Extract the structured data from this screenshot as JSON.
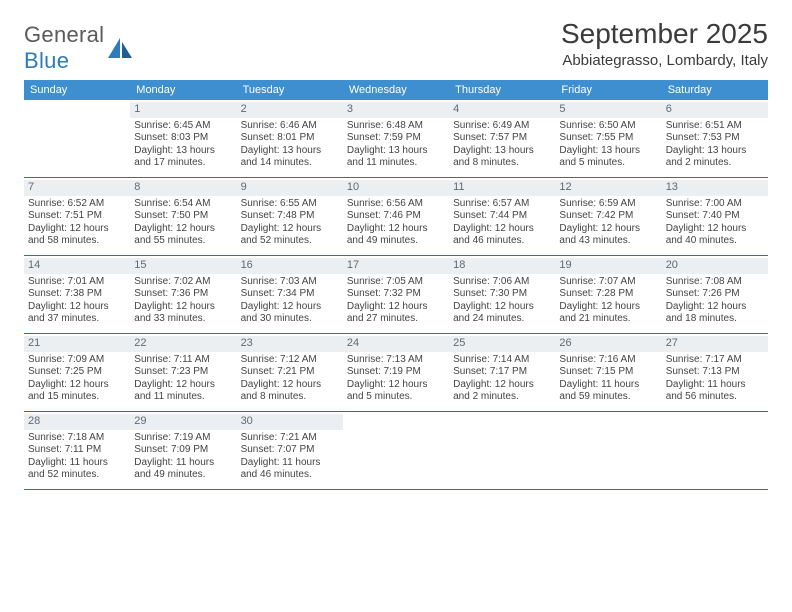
{
  "logo": {
    "text1": "General",
    "text2": "Blue"
  },
  "title": "September 2025",
  "location": "Abbiategrasso, Lombardy, Italy",
  "colors": {
    "header_bg": "#3d8fcf",
    "header_text": "#ffffff",
    "daynum_bg": "#eceff1",
    "daynum_text": "#5f6a72",
    "row_border": "#2f6fa6",
    "body_text": "#444444",
    "logo_gray": "#5b5b5b",
    "logo_blue": "#2b7bbd"
  },
  "days_of_week": [
    "Sunday",
    "Monday",
    "Tuesday",
    "Wednesday",
    "Thursday",
    "Friday",
    "Saturday"
  ],
  "weeks": [
    [
      {
        "blank": true
      },
      {
        "n": "1",
        "sunrise": "6:45 AM",
        "sunset": "8:03 PM",
        "daylight": "13 hours and 17 minutes."
      },
      {
        "n": "2",
        "sunrise": "6:46 AM",
        "sunset": "8:01 PM",
        "daylight": "13 hours and 14 minutes."
      },
      {
        "n": "3",
        "sunrise": "6:48 AM",
        "sunset": "7:59 PM",
        "daylight": "13 hours and 11 minutes."
      },
      {
        "n": "4",
        "sunrise": "6:49 AM",
        "sunset": "7:57 PM",
        "daylight": "13 hours and 8 minutes."
      },
      {
        "n": "5",
        "sunrise": "6:50 AM",
        "sunset": "7:55 PM",
        "daylight": "13 hours and 5 minutes."
      },
      {
        "n": "6",
        "sunrise": "6:51 AM",
        "sunset": "7:53 PM",
        "daylight": "13 hours and 2 minutes."
      }
    ],
    [
      {
        "n": "7",
        "sunrise": "6:52 AM",
        "sunset": "7:51 PM",
        "daylight": "12 hours and 58 minutes."
      },
      {
        "n": "8",
        "sunrise": "6:54 AM",
        "sunset": "7:50 PM",
        "daylight": "12 hours and 55 minutes."
      },
      {
        "n": "9",
        "sunrise": "6:55 AM",
        "sunset": "7:48 PM",
        "daylight": "12 hours and 52 minutes."
      },
      {
        "n": "10",
        "sunrise": "6:56 AM",
        "sunset": "7:46 PM",
        "daylight": "12 hours and 49 minutes."
      },
      {
        "n": "11",
        "sunrise": "6:57 AM",
        "sunset": "7:44 PM",
        "daylight": "12 hours and 46 minutes."
      },
      {
        "n": "12",
        "sunrise": "6:59 AM",
        "sunset": "7:42 PM",
        "daylight": "12 hours and 43 minutes."
      },
      {
        "n": "13",
        "sunrise": "7:00 AM",
        "sunset": "7:40 PM",
        "daylight": "12 hours and 40 minutes."
      }
    ],
    [
      {
        "n": "14",
        "sunrise": "7:01 AM",
        "sunset": "7:38 PM",
        "daylight": "12 hours and 37 minutes."
      },
      {
        "n": "15",
        "sunrise": "7:02 AM",
        "sunset": "7:36 PM",
        "daylight": "12 hours and 33 minutes."
      },
      {
        "n": "16",
        "sunrise": "7:03 AM",
        "sunset": "7:34 PM",
        "daylight": "12 hours and 30 minutes."
      },
      {
        "n": "17",
        "sunrise": "7:05 AM",
        "sunset": "7:32 PM",
        "daylight": "12 hours and 27 minutes."
      },
      {
        "n": "18",
        "sunrise": "7:06 AM",
        "sunset": "7:30 PM",
        "daylight": "12 hours and 24 minutes."
      },
      {
        "n": "19",
        "sunrise": "7:07 AM",
        "sunset": "7:28 PM",
        "daylight": "12 hours and 21 minutes."
      },
      {
        "n": "20",
        "sunrise": "7:08 AM",
        "sunset": "7:26 PM",
        "daylight": "12 hours and 18 minutes."
      }
    ],
    [
      {
        "n": "21",
        "sunrise": "7:09 AM",
        "sunset": "7:25 PM",
        "daylight": "12 hours and 15 minutes."
      },
      {
        "n": "22",
        "sunrise": "7:11 AM",
        "sunset": "7:23 PM",
        "daylight": "12 hours and 11 minutes."
      },
      {
        "n": "23",
        "sunrise": "7:12 AM",
        "sunset": "7:21 PM",
        "daylight": "12 hours and 8 minutes."
      },
      {
        "n": "24",
        "sunrise": "7:13 AM",
        "sunset": "7:19 PM",
        "daylight": "12 hours and 5 minutes."
      },
      {
        "n": "25",
        "sunrise": "7:14 AM",
        "sunset": "7:17 PM",
        "daylight": "12 hours and 2 minutes."
      },
      {
        "n": "26",
        "sunrise": "7:16 AM",
        "sunset": "7:15 PM",
        "daylight": "11 hours and 59 minutes."
      },
      {
        "n": "27",
        "sunrise": "7:17 AM",
        "sunset": "7:13 PM",
        "daylight": "11 hours and 56 minutes."
      }
    ],
    [
      {
        "n": "28",
        "sunrise": "7:18 AM",
        "sunset": "7:11 PM",
        "daylight": "11 hours and 52 minutes."
      },
      {
        "n": "29",
        "sunrise": "7:19 AM",
        "sunset": "7:09 PM",
        "daylight": "11 hours and 49 minutes."
      },
      {
        "n": "30",
        "sunrise": "7:21 AM",
        "sunset": "7:07 PM",
        "daylight": "11 hours and 46 minutes."
      },
      {
        "blank": true
      },
      {
        "blank": true
      },
      {
        "blank": true
      },
      {
        "blank": true
      }
    ]
  ],
  "labels": {
    "sunrise": "Sunrise:",
    "sunset": "Sunset:",
    "daylight": "Daylight:"
  }
}
